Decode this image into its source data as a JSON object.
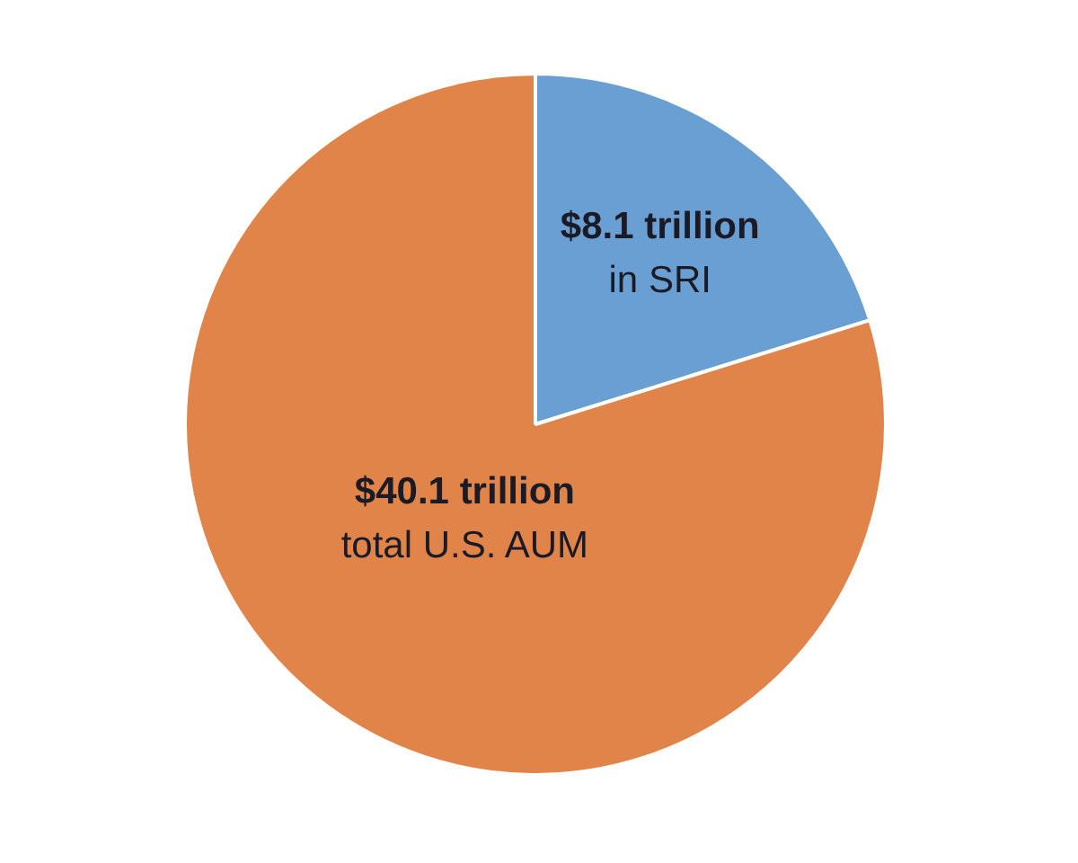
{
  "chart_data": {
    "type": "pie",
    "categories": [
      "in SRI",
      "total U.S. AUM"
    ],
    "values": [
      8.1,
      32.0
    ],
    "value_labels": [
      "$8.1 trillion",
      null
    ],
    "annotations": [
      "$40.1 trillion"
    ],
    "colors": [
      "#6a9fd3",
      "#e0844a"
    ]
  }
}
